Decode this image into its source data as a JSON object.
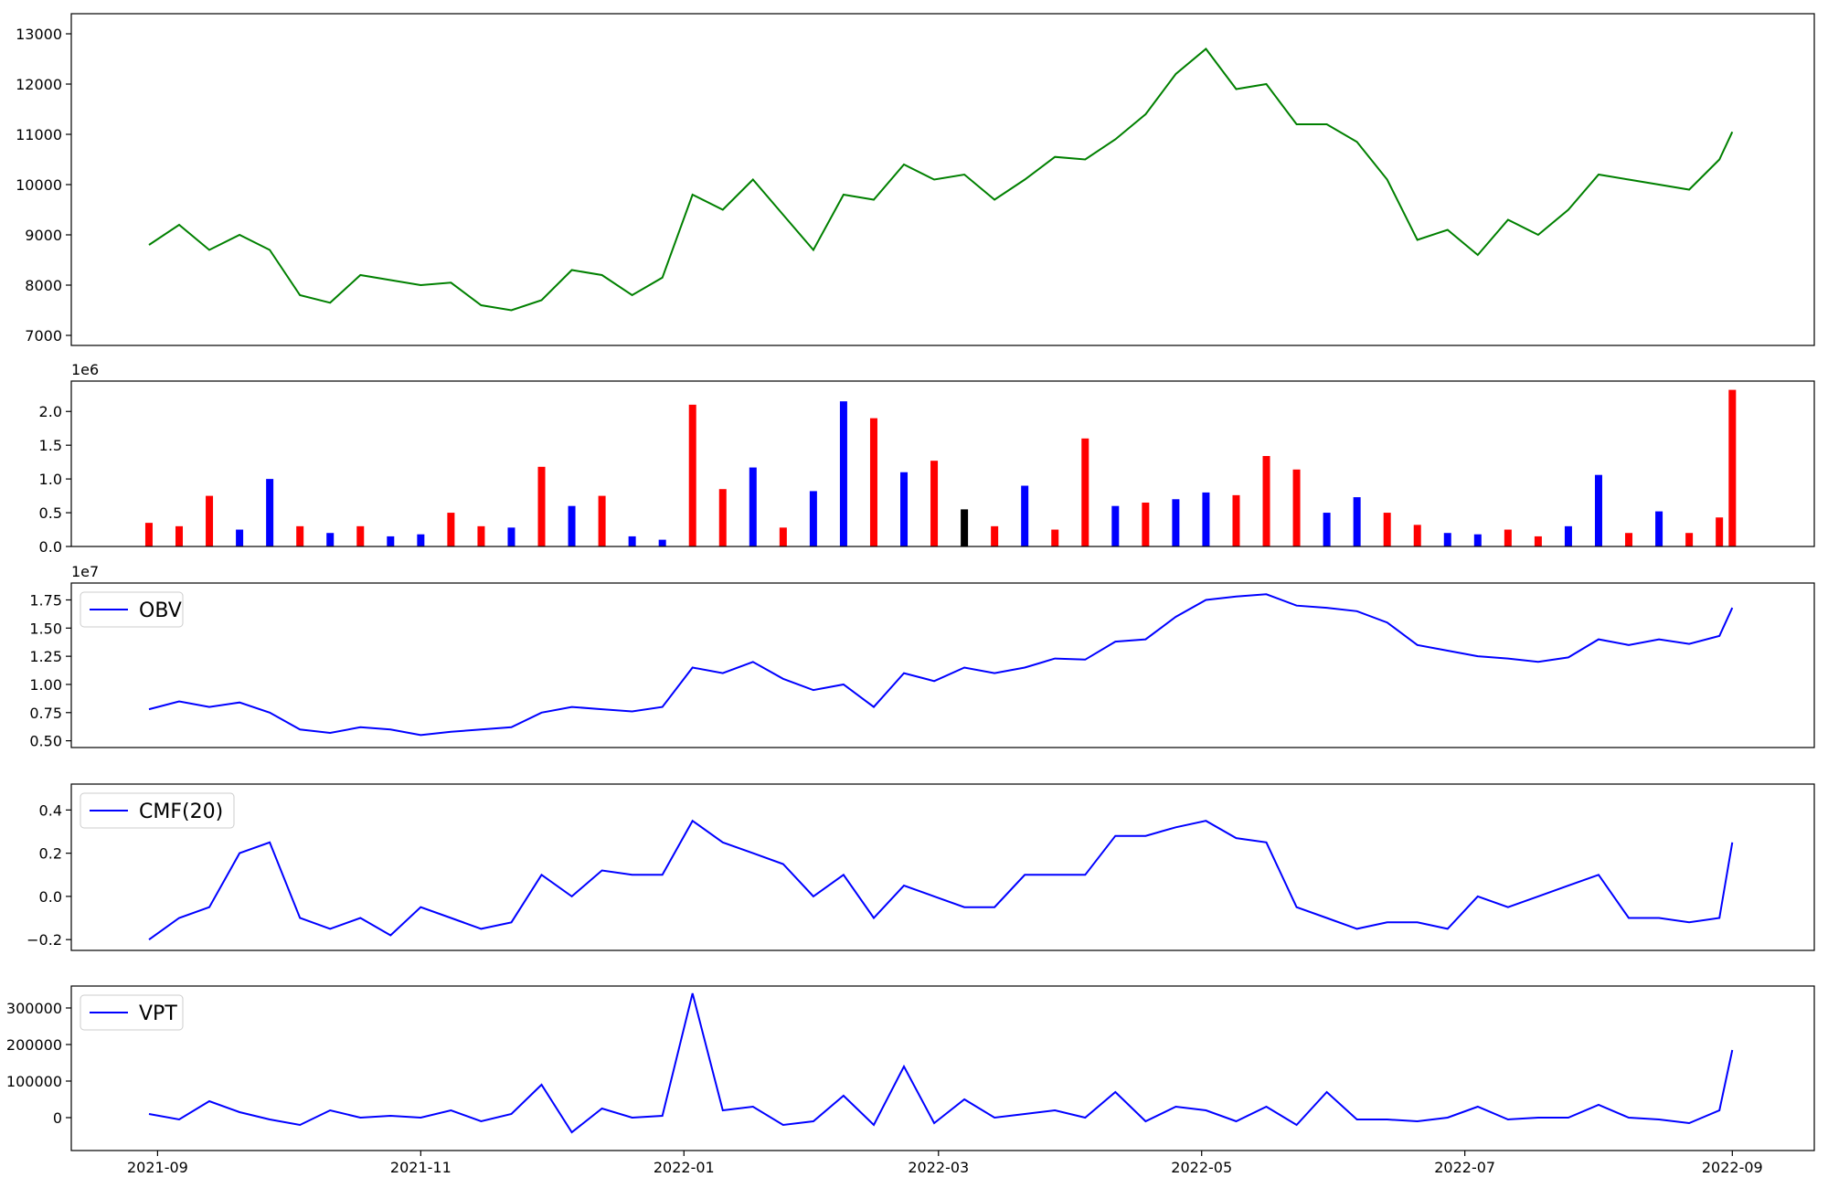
{
  "chart_data": {
    "x": [
      "2021-08-30",
      "2021-09-06",
      "2021-09-13",
      "2021-09-20",
      "2021-09-27",
      "2021-10-04",
      "2021-10-11",
      "2021-10-18",
      "2021-10-25",
      "2021-11-01",
      "2021-11-08",
      "2021-11-15",
      "2021-11-22",
      "2021-11-29",
      "2021-12-06",
      "2021-12-13",
      "2021-12-20",
      "2021-12-27",
      "2022-01-03",
      "2022-01-10",
      "2022-01-17",
      "2022-01-24",
      "2022-01-31",
      "2022-02-07",
      "2022-02-14",
      "2022-02-21",
      "2022-02-28",
      "2022-03-07",
      "2022-03-14",
      "2022-03-21",
      "2022-03-28",
      "2022-04-04",
      "2022-04-11",
      "2022-04-18",
      "2022-04-25",
      "2022-05-02",
      "2022-05-09",
      "2022-05-16",
      "2022-05-23",
      "2022-05-30",
      "2022-06-06",
      "2022-06-13",
      "2022-06-20",
      "2022-06-27",
      "2022-07-04",
      "2022-07-11",
      "2022-07-18",
      "2022-07-25",
      "2022-08-01",
      "2022-08-08",
      "2022-08-15",
      "2022-08-22",
      "2022-08-29",
      "2022-09-01"
    ],
    "xlim": [
      "2021-08-12",
      "2022-09-20"
    ],
    "xticks": [
      "2021-09",
      "2021-11",
      "2022-01",
      "2022-03",
      "2022-05",
      "2022-07",
      "2022-09"
    ],
    "panels": [
      {
        "type": "line",
        "ylim": [
          6800,
          13400
        ],
        "yticks": [
          7000,
          8000,
          9000,
          10000,
          11000,
          12000,
          13000
        ],
        "series": [
          {
            "color": "green",
            "values": [
              8800,
              9200,
              8700,
              9000,
              8700,
              7800,
              7650,
              8200,
              8100,
              8000,
              8050,
              7600,
              7500,
              7700,
              8300,
              8200,
              7800,
              8150,
              9800,
              9500,
              10100,
              9400,
              8700,
              9800,
              9700,
              10400,
              10100,
              10200,
              9700,
              10100,
              10550,
              10500,
              10900,
              11400,
              12200,
              12700,
              11900,
              12000,
              11200,
              11200,
              10850,
              10100,
              8900,
              9100,
              8600,
              9300,
              9000,
              9500,
              10200,
              10100,
              10000,
              9900,
              10500,
              11050
            ]
          }
        ]
      },
      {
        "type": "bar",
        "ylim": [
          0,
          2450000
        ],
        "offset_label": "1e6",
        "yticks": [
          {
            "value": 0,
            "label": "0.0"
          },
          {
            "value": 500000,
            "label": "0.5"
          },
          {
            "value": 1000000,
            "label": "1.0"
          },
          {
            "value": 1500000,
            "label": "1.5"
          },
          {
            "value": 2000000,
            "label": "2.0"
          }
        ],
        "values": [
          350000,
          300000,
          750000,
          250000,
          1000000,
          300000,
          200000,
          300000,
          150000,
          180000,
          500000,
          300000,
          280000,
          1180000,
          600000,
          750000,
          150000,
          100000,
          2100000,
          850000,
          1170000,
          280000,
          820000,
          2150000,
          1900000,
          1100000,
          1270000,
          550000,
          300000,
          900000,
          250000,
          1600000,
          600000,
          650000,
          700000,
          800000,
          760000,
          1340000,
          1140000,
          500000,
          730000,
          500000,
          320000,
          200000,
          180000,
          250000,
          150000,
          300000,
          1060000,
          200000,
          520000,
          200000,
          430000,
          2320000
        ],
        "colors": [
          "red",
          "red",
          "red",
          "blue",
          "blue",
          "red",
          "blue",
          "red",
          "blue",
          "blue",
          "red",
          "red",
          "blue",
          "red",
          "blue",
          "red",
          "blue",
          "blue",
          "red",
          "red",
          "blue",
          "red",
          "blue",
          "blue",
          "red",
          "blue",
          "red",
          "black",
          "red",
          "blue",
          "red",
          "red",
          "blue",
          "red",
          "blue",
          "blue",
          "red",
          "red",
          "red",
          "blue",
          "blue",
          "red",
          "red",
          "blue",
          "blue",
          "red",
          "red",
          "blue",
          "blue",
          "red",
          "blue",
          "red",
          "red",
          "red"
        ]
      },
      {
        "type": "line",
        "ylim": [
          4400000,
          19000000
        ],
        "offset_label": "1e7",
        "legend": "upper left",
        "yticks": [
          {
            "value": 5000000,
            "label": "0.50"
          },
          {
            "value": 7500000,
            "label": "0.75"
          },
          {
            "value": 10000000,
            "label": "1.00"
          },
          {
            "value": 12500000,
            "label": "1.25"
          },
          {
            "value": 15000000,
            "label": "1.50"
          },
          {
            "value": 17500000,
            "label": "1.75"
          }
        ],
        "series": [
          {
            "name": "OBV",
            "color": "blue",
            "values": [
              7800000,
              8500000,
              8000000,
              8400000,
              7500000,
              6000000,
              5700000,
              6200000,
              6000000,
              5500000,
              5800000,
              6000000,
              6200000,
              7500000,
              8000000,
              7800000,
              7600000,
              8000000,
              11500000,
              11000000,
              12000000,
              10500000,
              9500000,
              10000000,
              8000000,
              11000000,
              10300000,
              11500000,
              11000000,
              11500000,
              12300000,
              12200000,
              13800000,
              14000000,
              16000000,
              17500000,
              17800000,
              18000000,
              17000000,
              16800000,
              16500000,
              15500000,
              13500000,
              13000000,
              12500000,
              12300000,
              12000000,
              12400000,
              14000000,
              13500000,
              14000000,
              13600000,
              14300000,
              16800000
            ]
          }
        ]
      },
      {
        "type": "line",
        "ylim": [
          -0.25,
          0.52
        ],
        "legend": "upper left",
        "yticks": [
          {
            "value": -0.2,
            "label": "−0.2"
          },
          {
            "value": 0,
            "label": "0.0"
          },
          {
            "value": 0.2,
            "label": "0.2"
          },
          {
            "value": 0.4,
            "label": "0.4"
          }
        ],
        "series": [
          {
            "name": "CMF(20)",
            "color": "blue",
            "values": [
              -0.2,
              -0.1,
              -0.05,
              0.2,
              0.25,
              -0.1,
              -0.15,
              -0.1,
              -0.18,
              -0.05,
              -0.1,
              -0.15,
              -0.12,
              0.1,
              0,
              0.12,
              0.1,
              0.1,
              0.35,
              0.25,
              0.2,
              0.15,
              0,
              0.1,
              -0.1,
              0.05,
              0,
              -0.05,
              -0.05,
              0.1,
              0.1,
              0.1,
              0.28,
              0.28,
              0.32,
              0.35,
              0.27,
              0.25,
              -0.05,
              -0.1,
              -0.15,
              -0.12,
              -0.12,
              -0.15,
              0,
              -0.05,
              0,
              0.05,
              0.1,
              -0.1,
              -0.1,
              -0.12,
              -0.1,
              0.25
            ]
          }
        ]
      },
      {
        "type": "line",
        "ylim": [
          -90000,
          360000
        ],
        "legend": "upper left",
        "yticks": [
          0,
          100000,
          200000,
          300000
        ],
        "series": [
          {
            "name": "VPT",
            "color": "blue",
            "values": [
              10000,
              -5000,
              45000,
              15000,
              -5000,
              -20000,
              20000,
              0,
              5000,
              0,
              20000,
              -10000,
              10000,
              90000,
              -40000,
              25000,
              0,
              5000,
              340000,
              20000,
              30000,
              -20000,
              -10000,
              60000,
              -20000,
              140000,
              -15000,
              50000,
              0,
              10000,
              20000,
              0,
              70000,
              -10000,
              30000,
              20000,
              -10000,
              30000,
              -20000,
              70000,
              -5000,
              -5000,
              -10000,
              0,
              30000,
              -5000,
              0,
              0,
              35000,
              0,
              -5000,
              -15000,
              20000,
              185000
            ]
          }
        ]
      }
    ]
  }
}
